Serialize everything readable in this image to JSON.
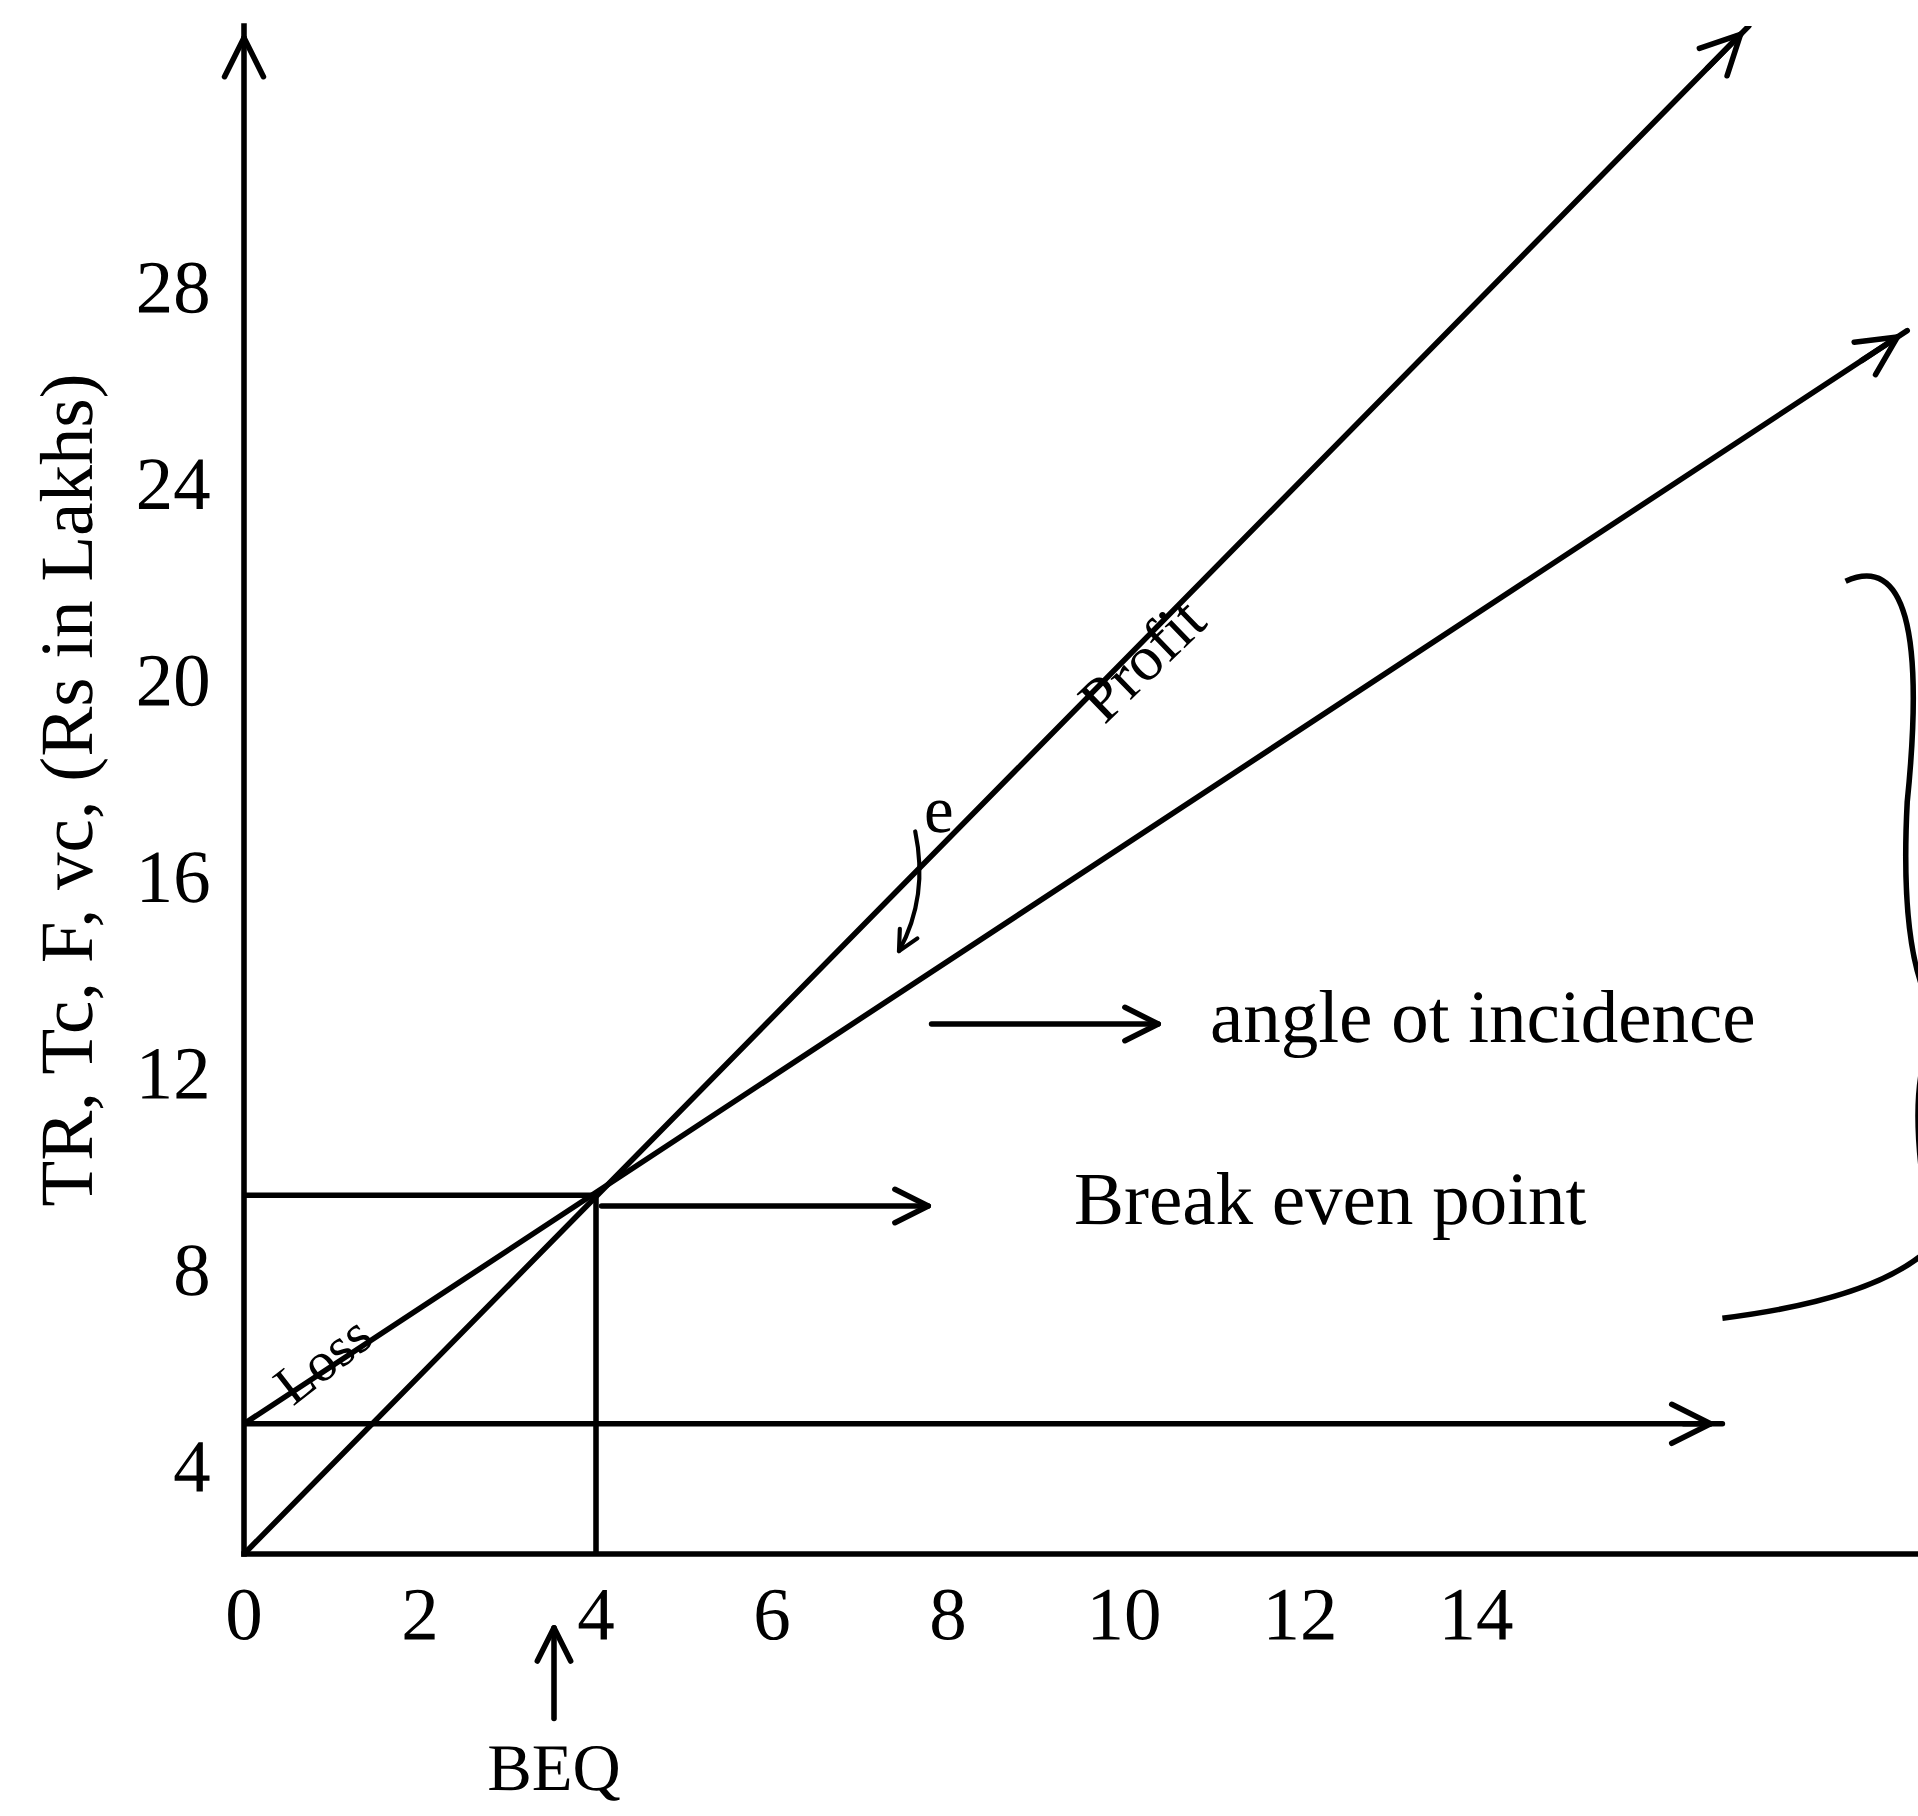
{
  "chart_data": {
    "type": "line",
    "ylabel": "TR, Tc, F, vc, (Rs in Lakhs)",
    "series": [
      {
        "x": [
          0,
          17.1
        ],
        "values": [
          2.2,
          33.3
        ],
        "color": "#000000"
      },
      {
        "x": [
          0,
          18.9
        ],
        "values": [
          4.85,
          27.1
        ],
        "color": "#000000"
      },
      {
        "x": [
          0,
          16.8
        ],
        "values": [
          4.85,
          4.85
        ],
        "color": "#000000"
      },
      {
        "x": [
          0,
          4.0
        ],
        "values": [
          9.5,
          9.5
        ],
        "color": "#000000"
      },
      {
        "x": [
          4.0,
          4.0
        ],
        "values": [
          2.2,
          9.5
        ],
        "color": "#000000"
      }
    ],
    "annotations": [
      "Profit",
      "Loss",
      "e",
      "angle ot incidence",
      "Break even point",
      "BEQ"
    ],
    "xlim": [
      0,
      19
    ],
    "ylim": [
      2.2,
      33.3
    ],
    "xticks": [
      0,
      2,
      4,
      6,
      8,
      10,
      12,
      14
    ],
    "yticks": [
      4,
      8,
      12,
      16,
      20,
      24,
      28
    ],
    "line_style": "solid",
    "grid": false,
    "legend": false
  }
}
